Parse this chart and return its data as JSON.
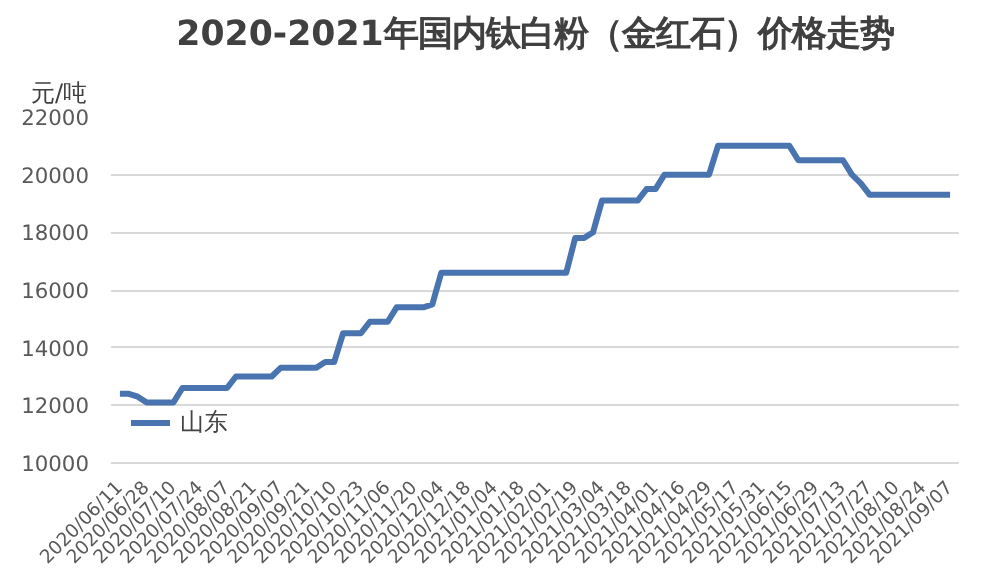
{
  "chart_data": {
    "type": "line",
    "title": "2020-2021年国内钛白粉（金红石）价格走势",
    "ylabel": "元/吨",
    "categories": [
      "2020/06/11",
      null,
      null,
      "2020/06/28",
      null,
      null,
      "2020/07/10",
      null,
      null,
      "2020/07/24",
      null,
      null,
      "2020/08/07",
      null,
      null,
      "2020/08/21",
      null,
      null,
      "2020/09/07",
      null,
      null,
      "2020/09/21",
      null,
      null,
      "2020/10/10",
      null,
      null,
      "2020/10/23",
      null,
      null,
      "2020/11/06",
      null,
      null,
      "2020/11/20",
      null,
      null,
      "2020/12/04",
      null,
      null,
      "2020/12/18",
      null,
      null,
      "2021/01/04",
      null,
      null,
      "2021/01/18",
      null,
      null,
      "2021/02/01",
      null,
      null,
      "2021/02/19",
      null,
      null,
      "2021/03/04",
      null,
      null,
      "2021/03/18",
      null,
      null,
      "2021/04/01",
      null,
      null,
      "2021/04/16",
      null,
      null,
      "2021/04/29",
      null,
      null,
      "2021/05/17",
      null,
      null,
      "2021/05/31",
      null,
      null,
      "2021/06/15",
      null,
      null,
      "2021/06/29",
      null,
      null,
      "2021/07/13",
      null,
      null,
      "2021/07/27",
      null,
      null,
      "2021/08/10",
      null,
      null,
      "2021/08/24",
      null,
      null,
      "2021/09/07"
    ],
    "series": [
      {
        "name": "山东",
        "color": "#4a74b0",
        "values": [
          12400,
          12400,
          12300,
          12100,
          12100,
          12100,
          12100,
          12600,
          12600,
          12600,
          12600,
          12600,
          12600,
          13000,
          13000,
          13000,
          13000,
          13000,
          13300,
          13300,
          13300,
          13300,
          13300,
          13500,
          13500,
          14500,
          14500,
          14500,
          14900,
          14900,
          14900,
          15400,
          15400,
          15400,
          15400,
          15500,
          16600,
          16600,
          16600,
          16600,
          16600,
          16600,
          16600,
          16600,
          16600,
          16600,
          16600,
          16600,
          16600,
          16600,
          16600,
          17800,
          17800,
          18000,
          19100,
          19100,
          19100,
          19100,
          19100,
          19500,
          19500,
          20000,
          20000,
          20000,
          20000,
          20000,
          20000,
          21000,
          21000,
          21000,
          21000,
          21000,
          21000,
          21000,
          21000,
          21000,
          20500,
          20500,
          20500,
          20500,
          20500,
          20500,
          20000,
          19700,
          19300,
          19300,
          19300,
          19300,
          19300,
          19300,
          19300,
          19300,
          19300,
          19300
        ]
      }
    ],
    "ylim": [
      10000,
      22000
    ],
    "yticks": [
      10000,
      12000,
      14000,
      16000,
      18000,
      20000,
      22000
    ],
    "grid": "y",
    "legend": "bottom left",
    "marker": "none",
    "line_style": "solid"
  }
}
